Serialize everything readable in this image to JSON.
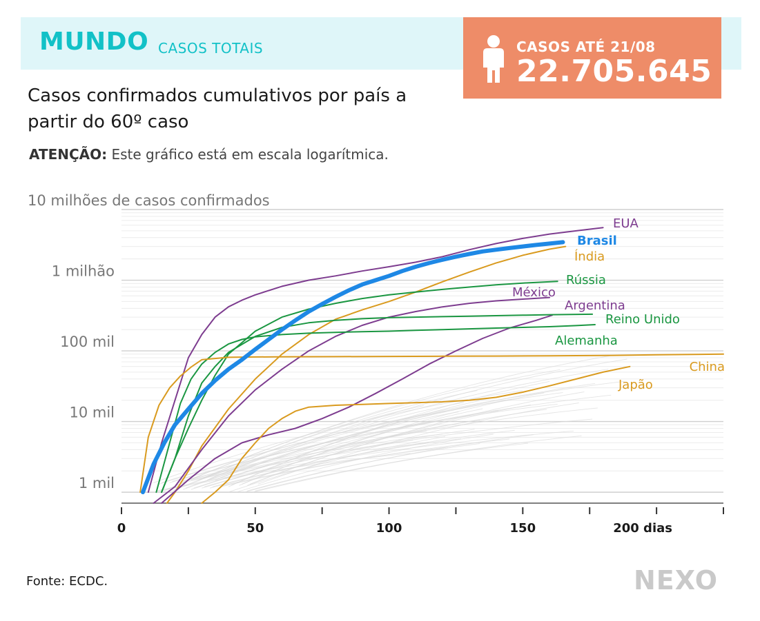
{
  "header": {
    "region": "MUNDO",
    "subtitle": "CASOS TOTAIS",
    "counter_label": "CASOS ATÉ 21/08",
    "counter_value": "22.705.645",
    "accent_color": "#12c1c7",
    "band_color": "#dff6f9",
    "counter_color": "#ee8c68"
  },
  "chart_title": "Casos confirmados cumulativos por país a partir do 60º caso",
  "note": {
    "label": "ATENÇÃO:",
    "text": "Este gráfico está em escala logarítmica."
  },
  "source": "Fonte: ECDC.",
  "logo": "NEXO",
  "chart_data": {
    "type": "line",
    "log_scale": true,
    "xlim": [
      0,
      225
    ],
    "ylim": [
      700,
      10000000
    ],
    "x_ticks": [
      0,
      25,
      50,
      75,
      100,
      125,
      150,
      175,
      200,
      225
    ],
    "x_tick_labels": [
      "0",
      "",
      "50",
      "",
      "100",
      "",
      "150",
      "",
      "200 dias",
      ""
    ],
    "y_ticks": [
      1000,
      10000,
      100000,
      1000000,
      10000000
    ],
    "y_tick_labels": [
      "1 mil",
      "10 mil",
      "100 mil",
      "1 milhão",
      "10 milhões de casos confirmados"
    ],
    "grid": true,
    "colors": {
      "purple": "#7d3c8f",
      "green": "#1a9641",
      "orange": "#d99a1e",
      "blue": "#1e88e5",
      "background_lines": "#d9d9d9"
    },
    "series": [
      {
        "name": "EUA",
        "color": "#7d3c8f",
        "width": 2,
        "x": [
          10,
          15,
          20,
          25,
          30,
          35,
          40,
          45,
          50,
          60,
          70,
          80,
          90,
          100,
          110,
          120,
          130,
          140,
          150,
          160,
          170,
          180
        ],
        "y": [
          1000,
          5000,
          20000,
          80000,
          170000,
          300000,
          420000,
          520000,
          620000,
          820000,
          1000000,
          1150000,
          1350000,
          1550000,
          1800000,
          2150000,
          2700000,
          3300000,
          3900000,
          4500000,
          5000000,
          5550000
        ]
      },
      {
        "name": "Brasil",
        "color": "#1e88e5",
        "width": 6,
        "bold": true,
        "x": [
          8,
          12,
          16,
          20,
          25,
          30,
          35,
          40,
          45,
          50,
          55,
          60,
          65,
          70,
          75,
          80,
          85,
          90,
          95,
          100,
          105,
          110,
          115,
          120,
          125,
          130,
          135,
          140,
          145,
          150,
          155,
          160,
          165
        ],
        "y": [
          1000,
          2500,
          5000,
          9000,
          15000,
          25000,
          38000,
          55000,
          75000,
          105000,
          145000,
          200000,
          270000,
          360000,
          460000,
          580000,
          720000,
          870000,
          1000000,
          1150000,
          1350000,
          1550000,
          1750000,
          1950000,
          2150000,
          2350000,
          2550000,
          2700000,
          2850000,
          3000000,
          3150000,
          3300000,
          3450000
        ]
      },
      {
        "name": "Índia",
        "color": "#d99a1e",
        "width": 2,
        "x": [
          17,
          20,
          25,
          30,
          40,
          50,
          60,
          70,
          80,
          90,
          100,
          110,
          120,
          130,
          140,
          150,
          160,
          166
        ],
        "y": [
          700,
          1000,
          2000,
          4500,
          15000,
          40000,
          90000,
          170000,
          280000,
          380000,
          500000,
          680000,
          950000,
          1300000,
          1750000,
          2250000,
          2750000,
          3000000
        ]
      },
      {
        "name": "Rússia",
        "color": "#1a9641",
        "width": 2,
        "x": [
          15,
          20,
          25,
          30,
          35,
          40,
          50,
          60,
          70,
          80,
          90,
          100,
          110,
          120,
          130,
          140,
          150,
          163
        ],
        "y": [
          1000,
          3000,
          8000,
          20000,
          45000,
          90000,
          190000,
          300000,
          390000,
          470000,
          550000,
          620000,
          680000,
          740000,
          800000,
          860000,
          910000,
          960000
        ]
      },
      {
        "name": "México",
        "color": "#7d3c8f",
        "width": 2,
        "x": [
          12,
          20,
          30,
          40,
          50,
          60,
          70,
          80,
          90,
          100,
          110,
          120,
          130,
          140,
          150,
          160
        ],
        "y": [
          700,
          1200,
          4000,
          12000,
          28000,
          55000,
          100000,
          160000,
          230000,
          300000,
          360000,
          420000,
          470000,
          510000,
          540000,
          570000
        ]
      },
      {
        "name": "Argentina",
        "color": "#7d3c8f",
        "width": 2,
        "x": [
          15,
          25,
          35,
          45,
          55,
          65,
          75,
          85,
          95,
          105,
          115,
          125,
          135,
          145,
          155,
          161
        ],
        "y": [
          700,
          1500,
          3000,
          5000,
          6500,
          8000,
          11000,
          16000,
          25000,
          40000,
          65000,
          100000,
          150000,
          210000,
          270000,
          320000
        ]
      },
      {
        "name": "Reino Unido",
        "color": "#1a9641",
        "width": 2,
        "x": [
          15,
          20,
          25,
          30,
          35,
          40,
          50,
          60,
          70,
          80,
          90,
          100,
          110,
          120,
          130,
          140,
          150,
          160,
          176
        ],
        "y": [
          1000,
          3000,
          12000,
          35000,
          60000,
          95000,
          160000,
          215000,
          250000,
          270000,
          285000,
          295000,
          300000,
          305000,
          310000,
          315000,
          320000,
          325000,
          330000
        ]
      },
      {
        "name": "Alemanha",
        "color": "#1a9641",
        "width": 2,
        "x": [
          13,
          18,
          22,
          26,
          30,
          35,
          40,
          45,
          50,
          60,
          70,
          80,
          90,
          100,
          110,
          120,
          130,
          140,
          150,
          160,
          170,
          177
        ],
        "y": [
          1000,
          5000,
          18000,
          40000,
          65000,
          95000,
          125000,
          145000,
          158000,
          170000,
          178000,
          183000,
          187000,
          190000,
          195000,
          200000,
          205000,
          210000,
          215000,
          220000,
          228000,
          235000
        ]
      },
      {
        "name": "China",
        "color": "#d99a1e",
        "width": 2,
        "x": [
          7,
          10,
          14,
          18,
          22,
          26,
          30,
          40,
          50,
          60,
          80,
          100,
          120,
          140,
          160,
          180,
          200,
          225
        ],
        "y": [
          1000,
          6000,
          17000,
          30000,
          44000,
          59000,
          75000,
          81000,
          82000,
          82500,
          83000,
          83500,
          84000,
          84500,
          85000,
          86000,
          88000,
          90000
        ]
      },
      {
        "name": "Japão",
        "color": "#d99a1e",
        "width": 2,
        "x": [
          30,
          35,
          40,
          45,
          50,
          55,
          60,
          65,
          70,
          80,
          90,
          100,
          110,
          120,
          130,
          140,
          150,
          160,
          170,
          180,
          190
        ],
        "y": [
          700,
          1000,
          1500,
          3000,
          5000,
          8000,
          11000,
          14000,
          16000,
          17000,
          17500,
          18000,
          18500,
          19000,
          20000,
          22000,
          26000,
          32000,
          40000,
          50000,
          60000
        ]
      }
    ],
    "label_positions": [
      "EUA",
      "Brasil",
      "Índia",
      "Rússia",
      "México",
      "Argentina",
      "Reino Unido",
      "Alemanha",
      "China",
      "Japão"
    ]
  }
}
